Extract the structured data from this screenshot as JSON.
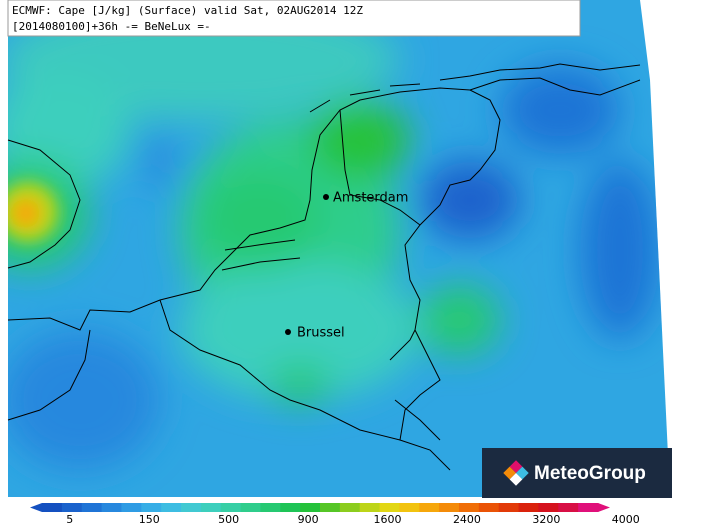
{
  "header": {
    "line1": "ECMWF: Cape [J/kg] (Surface) valid Sat, 02AUG2014 12Z",
    "line2": "[2014080100]+36h -= BeNeLux =-"
  },
  "cities": [
    {
      "label": "Amsterdam"
    },
    {
      "label": "Brussel"
    }
  ],
  "colorbar": {
    "colors": [
      "#1450c0",
      "#1a62cc",
      "#1f74d6",
      "#2788de",
      "#2f9ce4",
      "#37aee6",
      "#3dbde2",
      "#41c9d2",
      "#3dcfbd",
      "#37cfa5",
      "#2fcd8c",
      "#26c972",
      "#1ec456",
      "#25c23a",
      "#56c626",
      "#8ccd1e",
      "#bdd518",
      "#e2d714",
      "#f2c30f",
      "#f6a70b",
      "#f48b09",
      "#f06e07",
      "#ea5306",
      "#e23a08",
      "#da220c",
      "#d5121e",
      "#d80f45",
      "#e0107a"
    ],
    "ticks": [
      5,
      150,
      500,
      900,
      1600,
      2400,
      3200,
      4000
    ]
  },
  "logo": {
    "text": "MeteoGroup"
  }
}
